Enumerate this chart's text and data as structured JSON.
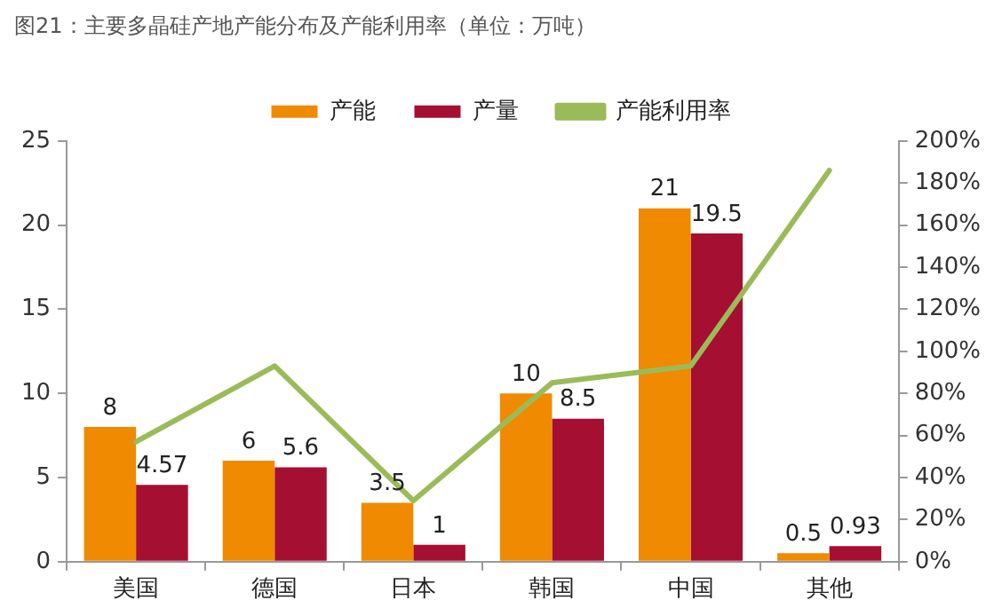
{
  "chart_data": {
    "type": "bar",
    "title": "图21：主要多晶硅产地产能分布及产能利用率（单位：万吨）",
    "categories": [
      "美国",
      "德国",
      "日本",
      "韩国",
      "中国",
      "其他"
    ],
    "series": [
      {
        "name": "产能",
        "color": "#f08a00",
        "values": [
          8,
          6,
          3.5,
          10,
          21,
          0.5
        ],
        "value_labels": [
          "8",
          "6",
          "3.5",
          "10",
          "21",
          "0.5"
        ]
      },
      {
        "name": "产量",
        "color": "#a50f32",
        "values": [
          4.57,
          5.6,
          1,
          8.5,
          19.5,
          0.93
        ],
        "value_labels": [
          "4.57",
          "5.6",
          "1",
          "8.5",
          "19.5",
          "0.93"
        ]
      },
      {
        "name": "产能利用率",
        "type": "line",
        "axis": "y2",
        "color": "#9bbb59",
        "values": [
          57,
          93,
          29,
          85,
          93,
          186
        ]
      }
    ],
    "ylim": [
      0,
      25
    ],
    "yticks": [
      0,
      5,
      10,
      15,
      20,
      25
    ],
    "y2lim": [
      0,
      200
    ],
    "y2ticks": [
      {
        "value": 0,
        "label": "0%"
      },
      {
        "value": 20,
        "label": "20%"
      },
      {
        "value": 40,
        "label": "40%"
      },
      {
        "value": 60,
        "label": "60%"
      },
      {
        "value": 80,
        "label": "80%"
      },
      {
        "value": 100,
        "label": "100%"
      },
      {
        "value": 120,
        "label": "120%"
      },
      {
        "value": 140,
        "label": "140%"
      },
      {
        "value": 160,
        "label": "160%"
      },
      {
        "value": 180,
        "label": "180%"
      },
      {
        "value": 200,
        "label": "200%"
      }
    ],
    "legend": "top",
    "grid": false,
    "marker": "none"
  }
}
